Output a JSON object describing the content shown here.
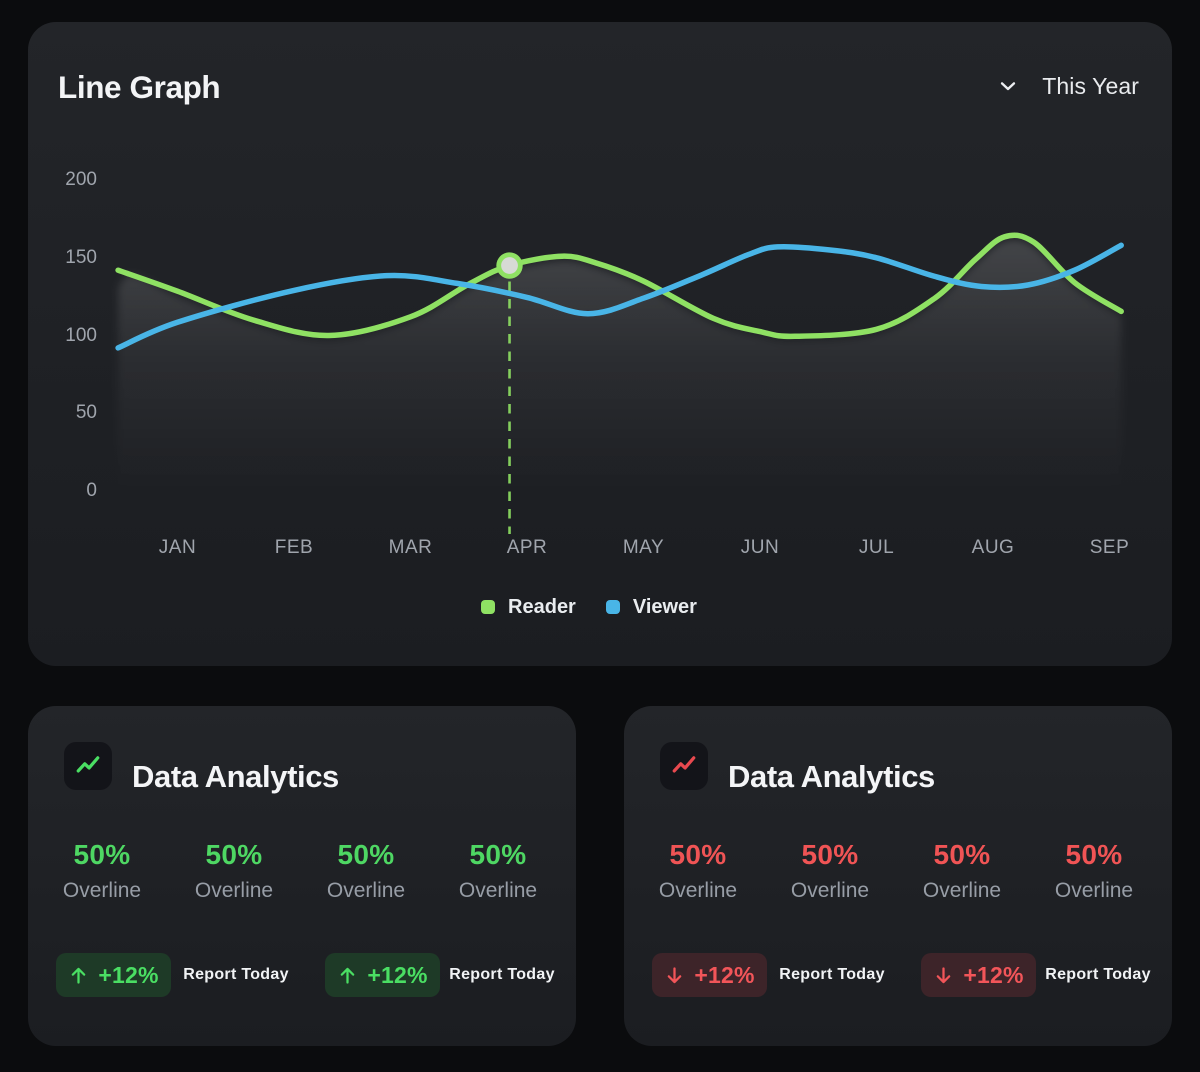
{
  "chart": {
    "title": "Line Graph",
    "range_label": "This Year"
  },
  "chart_data": {
    "type": "line",
    "title": "Line Graph",
    "x_labels": [
      "JAN",
      "FEB",
      "MAR",
      "APR",
      "MAY",
      "JUN",
      "JUL",
      "AUG",
      "SEP"
    ],
    "y_ticks": [
      200,
      150,
      100,
      50,
      0
    ],
    "ylim": [
      0,
      215
    ],
    "grid": false,
    "legend_position": "bottom",
    "series": [
      {
        "name": "Reader",
        "color": "#8fe163",
        "values": [
          131,
          105,
          112,
          147,
          135,
          102,
          104,
          162,
          120
        ],
        "points": [
          [
            -0.51,
            142
          ],
          [
            0,
            128.5
          ],
          [
            0.65,
            110
          ],
          [
            1.3,
            100
          ],
          [
            2,
            112
          ],
          [
            2.5,
            133
          ],
          [
            2.85,
            145
          ],
          [
            3.3,
            151
          ],
          [
            3.6,
            146.5
          ],
          [
            4,
            135
          ],
          [
            4.6,
            111
          ],
          [
            5,
            102.5
          ],
          [
            5.3,
            99.5
          ],
          [
            6,
            104
          ],
          [
            6.5,
            124
          ],
          [
            6.85,
            149
          ],
          [
            7.1,
            163.5
          ],
          [
            7.35,
            160
          ],
          [
            7.7,
            134
          ],
          [
            8.1,
            115.5
          ]
        ]
      },
      {
        "name": "Viewer",
        "color": "#49b5e7",
        "values": [
          107,
          129,
          138,
          124,
          119,
          156,
          150,
          132,
          156
        ],
        "points": [
          [
            -0.51,
            92
          ],
          [
            0,
            108.5
          ],
          [
            1,
            129
          ],
          [
            1.8,
            138.5
          ],
          [
            2.4,
            133.5
          ],
          [
            3,
            124.5
          ],
          [
            3.52,
            114
          ],
          [
            4,
            124
          ],
          [
            4.5,
            139
          ],
          [
            4.9,
            152
          ],
          [
            5.15,
            157
          ],
          [
            5.6,
            155
          ],
          [
            6,
            150
          ],
          [
            6.5,
            138
          ],
          [
            6.9,
            131.5
          ],
          [
            7.3,
            132.5
          ],
          [
            7.7,
            142
          ],
          [
            8.1,
            158
          ]
        ]
      }
    ],
    "highlight": {
      "series": "Reader",
      "x": 2.85,
      "value": 145,
      "month": "APR"
    },
    "area_fill_series": "Reader"
  },
  "cards": [
    {
      "title": "Data Analytics",
      "trend": "up",
      "accent": "#4ed763",
      "stats": [
        {
          "value": "50%",
          "label": "Overline"
        },
        {
          "value": "50%",
          "label": "Overline"
        },
        {
          "value": "50%",
          "label": "Overline"
        },
        {
          "value": "50%",
          "label": "Overline"
        }
      ],
      "badges": [
        {
          "text": "+12%"
        },
        {
          "text": "+12%"
        }
      ],
      "reports": [
        "Report Today",
        "Report Today"
      ]
    },
    {
      "title": "Data Analytics",
      "trend": "down",
      "accent": "#f05455",
      "stats": [
        {
          "value": "50%",
          "label": "Overline"
        },
        {
          "value": "50%",
          "label": "Overline"
        },
        {
          "value": "50%",
          "label": "Overline"
        },
        {
          "value": "50%",
          "label": "Overline"
        }
      ],
      "badges": [
        {
          "text": "+12%"
        },
        {
          "text": "+12%"
        }
      ],
      "reports": [
        "Report Today",
        "Report Today"
      ]
    }
  ]
}
